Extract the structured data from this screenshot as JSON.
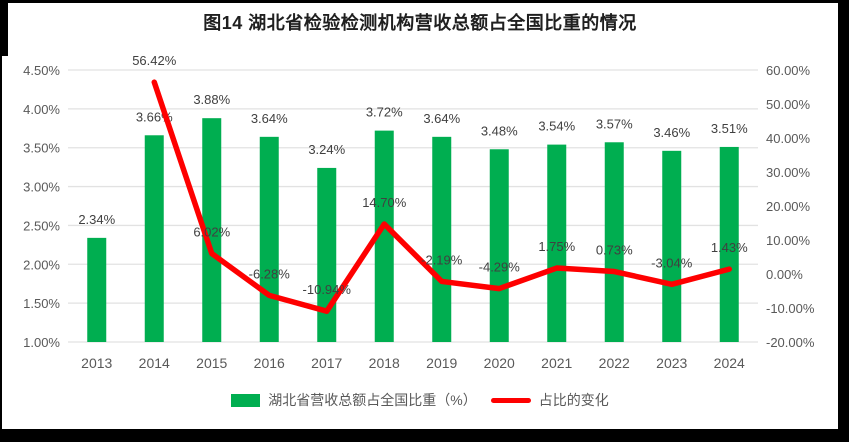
{
  "title": "图14 湖北省检验检测机构营收总额占全国比重的情况",
  "colors": {
    "bar": "#00AE50",
    "line": "#FE0000",
    "grid": "#E2E2E2",
    "axis_text": "#595959",
    "label_text": "#404040",
    "title_text": "#1F1F1F",
    "page_bg": "#FFFFFF",
    "frame_bg": "#000000"
  },
  "legend": {
    "bar_label": "湖北省营收总额占全国比重（%）",
    "line_label": "占比的变化"
  },
  "chart_data": {
    "type": "combo-bar-line",
    "title": "图14 湖北省检验检测机构营收总额占全国比重的情况",
    "categories": [
      "2013",
      "2014",
      "2015",
      "2016",
      "2017",
      "2018",
      "2019",
      "2020",
      "2021",
      "2022",
      "2023",
      "2024"
    ],
    "series": [
      {
        "name": "湖北省营收总额占全国比重（%）",
        "type": "bar",
        "axis": "left",
        "values": [
          2.34,
          3.66,
          3.88,
          3.64,
          3.24,
          3.72,
          3.64,
          3.48,
          3.54,
          3.57,
          3.46,
          3.51
        ],
        "labels": [
          "2.34%",
          "3.66%",
          "3.88%",
          "3.64%",
          "3.24%",
          "3.72%",
          "3.64%",
          "3.48%",
          "3.54%",
          "3.57%",
          "3.46%",
          "3.51%"
        ]
      },
      {
        "name": "占比的变化",
        "type": "line",
        "axis": "right",
        "values": [
          null,
          56.42,
          6.02,
          -6.28,
          -10.94,
          14.7,
          -2.19,
          -4.29,
          1.75,
          0.73,
          -3.04,
          1.43
        ],
        "labels": [
          null,
          "56.42%",
          "6.02%",
          "-6.28%",
          "-10.94%",
          "14.70%",
          "-2.19%",
          "-4.29%",
          "1.75%",
          "0.73%",
          "-3.04%",
          "1.43%"
        ]
      }
    ],
    "left_axis": {
      "min": 1.0,
      "max": 4.5,
      "step": 0.5,
      "ticks": [
        "4.50%",
        "4.00%",
        "3.50%",
        "3.00%",
        "2.50%",
        "2.00%",
        "1.50%",
        "1.00%"
      ]
    },
    "right_axis": {
      "min": -20,
      "max": 60,
      "step": 10,
      "ticks": [
        "60.00%",
        "50.00%",
        "40.00%",
        "30.00%",
        "20.00%",
        "10.00%",
        "0.00%",
        "-10.00%",
        "-20.00%"
      ]
    },
    "grid": true,
    "legend_position": "bottom"
  }
}
